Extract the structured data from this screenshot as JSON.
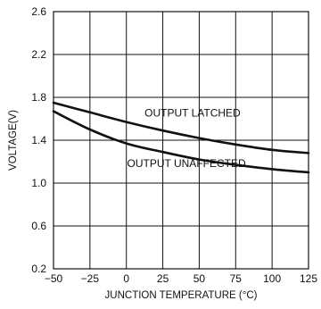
{
  "chart_data": {
    "type": "line",
    "xlabel": "JUNCTION TEMPERATURE (°C)",
    "ylabel": "VOLTAGE(V)",
    "xlim": [
      -50,
      125
    ],
    "ylim": [
      0.2,
      2.6
    ],
    "x_ticks": [
      -50,
      -25,
      0,
      25,
      50,
      75,
      100,
      125
    ],
    "y_ticks": [
      0.2,
      0.6,
      1.0,
      1.4,
      1.8,
      2.2,
      2.6
    ],
    "x_tick_labels": [
      "−50",
      "−25",
      "0",
      "25",
      "50",
      "75",
      "100",
      "125"
    ],
    "y_tick_labels": [
      "0.2",
      "0.6",
      "1.0",
      "1.4",
      "1.8",
      "2.2",
      "2.6"
    ],
    "grid": true,
    "series": [
      {
        "name": "OUTPUT LATCHED",
        "x": [
          -50,
          -25,
          0,
          25,
          50,
          75,
          100,
          125
        ],
        "y": [
          1.75,
          1.66,
          1.57,
          1.49,
          1.42,
          1.36,
          1.31,
          1.28
        ]
      },
      {
        "name": "OUTPUT UNAFFECTED",
        "x": [
          -50,
          -25,
          0,
          25,
          50,
          75,
          100,
          125
        ],
        "y": [
          1.67,
          1.5,
          1.37,
          1.29,
          1.22,
          1.17,
          1.13,
          1.1
        ]
      }
    ],
    "annotations": [
      {
        "text": "OUTPUT LATCHED",
        "series": 0
      },
      {
        "text": "OUTPUT UNAFFECTED",
        "series": 1
      }
    ]
  }
}
